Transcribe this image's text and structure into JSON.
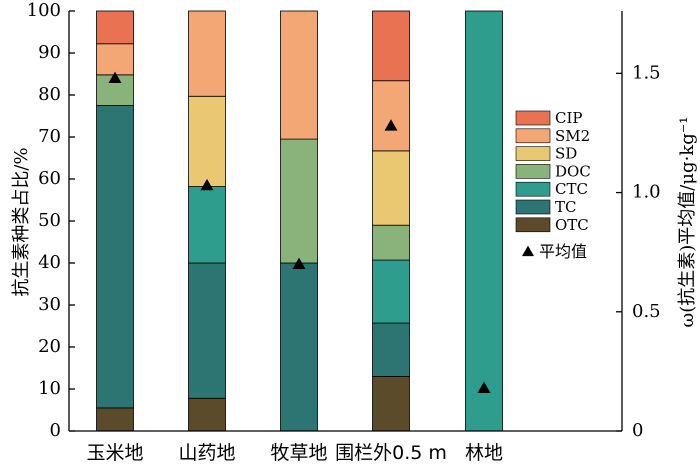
{
  "chart_data": {
    "type": "bar",
    "stacked": true,
    "categories": [
      "玉米地",
      "山药地",
      "牧草地",
      "围栏外0.5 m",
      "林地"
    ],
    "series": [
      {
        "name": "OTC",
        "color": "#5b4b2b",
        "values": [
          5.5,
          7.8,
          0,
          13.0,
          0
        ]
      },
      {
        "name": "TC",
        "color": "#2c7572",
        "values": [
          72.0,
          32.2,
          40.0,
          12.7,
          0
        ]
      },
      {
        "name": "CTC",
        "color": "#2e9d8e",
        "values": [
          0,
          18.2,
          0,
          15.0,
          100
        ]
      },
      {
        "name": "DOC",
        "color": "#8ab37c",
        "values": [
          7.3,
          0,
          29.5,
          8.3,
          0
        ]
      },
      {
        "name": "SD",
        "color": "#eac871",
        "values": [
          0,
          21.5,
          0,
          17.7,
          0
        ]
      },
      {
        "name": "SM2",
        "color": "#f3a774",
        "values": [
          7.4,
          20.3,
          30.5,
          16.7,
          0
        ]
      },
      {
        "name": "CIP",
        "color": "#e87252",
        "values": [
          7.8,
          0,
          0,
          16.6,
          0
        ]
      }
    ],
    "mean": {
      "name": "平均值",
      "marker": "triangle",
      "values": [
        1.48,
        1.03,
        0.7,
        1.28,
        0.18
      ]
    },
    "y_left": {
      "label": "抗生素种类占比/%",
      "lim": [
        0,
        100
      ],
      "ticks": [
        0,
        10,
        20,
        30,
        40,
        50,
        60,
        70,
        80,
        90,
        100
      ]
    },
    "y_right": {
      "label": "ω(抗生素)平均值/μg·kg⁻¹",
      "lim": [
        0,
        1.7615
      ],
      "ticks": [
        0,
        0.5,
        1.0,
        1.5
      ],
      "tick_labels": [
        "0",
        "0.5",
        "1.0",
        "1.5"
      ]
    },
    "legend": {
      "placement": "right",
      "order": [
        "CIP",
        "SM2",
        "SD",
        "DOC",
        "CTC",
        "TC",
        "OTC"
      ]
    },
    "grid": false
  }
}
